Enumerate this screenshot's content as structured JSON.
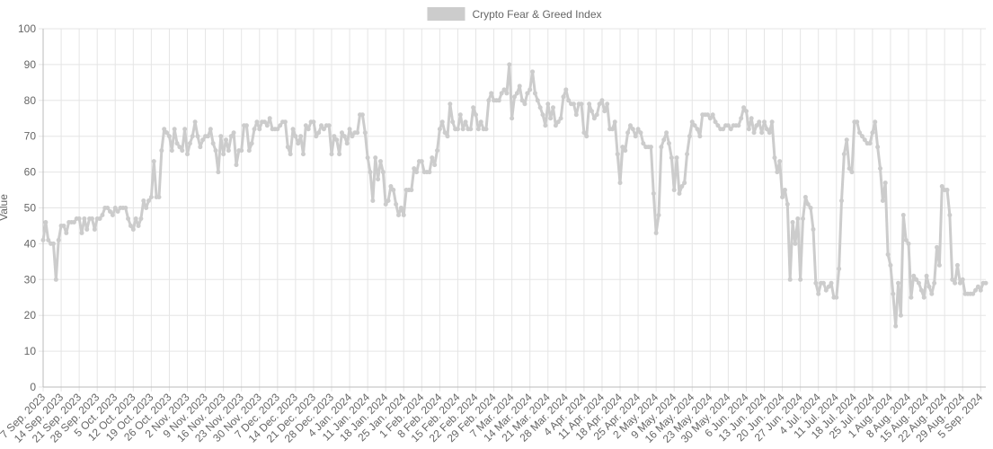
{
  "chart_data": {
    "type": "line",
    "y_label": "Value",
    "categories": [
      "7 Sep. 2023",
      null,
      null,
      null,
      null,
      null,
      null,
      "14 Sep. 2023",
      null,
      null,
      null,
      null,
      null,
      null,
      "21 Sep. 2023",
      null,
      null,
      null,
      null,
      null,
      null,
      "28 Sep. 2023",
      null,
      null,
      null,
      null,
      null,
      null,
      "5 Oct. 2023",
      null,
      null,
      null,
      null,
      null,
      null,
      "12 Oct. 2023",
      null,
      null,
      null,
      null,
      null,
      null,
      "19 Oct. 2023",
      null,
      null,
      null,
      null,
      null,
      null,
      "26 Oct. 2023",
      null,
      null,
      null,
      null,
      null,
      null,
      "2 Nov. 2023",
      null,
      null,
      null,
      null,
      null,
      null,
      "9 Nov. 2023",
      null,
      null,
      null,
      null,
      null,
      null,
      "16 Nov. 2023",
      null,
      null,
      null,
      null,
      null,
      null,
      "23 Nov. 2023",
      null,
      null,
      null,
      null,
      null,
      null,
      "30 Nov. 2023",
      null,
      null,
      null,
      null,
      null,
      null,
      "7 Dec. 2023",
      null,
      null,
      null,
      null,
      null,
      null,
      "14 Dec. 2023",
      null,
      null,
      null,
      null,
      null,
      null,
      "21 Dec. 2023",
      null,
      null,
      null,
      null,
      null,
      null,
      "28 Dec. 2023",
      null,
      null,
      null,
      null,
      null,
      null,
      "4 Jan. 2024",
      null,
      null,
      null,
      null,
      null,
      null,
      "11 Jan. 2024",
      null,
      null,
      null,
      null,
      null,
      null,
      "18 Jan. 2024",
      null,
      null,
      null,
      null,
      null,
      null,
      "25 Jan. 2024",
      null,
      null,
      null,
      null,
      null,
      null,
      "1 Feb. 2024",
      null,
      null,
      null,
      null,
      null,
      null,
      "8 Feb. 2024",
      null,
      null,
      null,
      null,
      null,
      null,
      "15 Feb. 2024",
      null,
      null,
      null,
      null,
      null,
      null,
      "22 Feb. 2024",
      null,
      null,
      null,
      null,
      null,
      null,
      "29 Feb. 2024",
      null,
      null,
      null,
      null,
      null,
      null,
      "7 Mar. 2024",
      null,
      null,
      null,
      null,
      null,
      null,
      "14 Mar. 2024",
      null,
      null,
      null,
      null,
      null,
      null,
      "21 Mar. 2024",
      null,
      null,
      null,
      null,
      null,
      null,
      "28 Mar. 2024",
      null,
      null,
      null,
      null,
      null,
      null,
      "4 Apr. 2024",
      null,
      null,
      null,
      null,
      null,
      null,
      "11 Apr. 2024",
      null,
      null,
      null,
      null,
      null,
      null,
      "18 Apr. 2024",
      null,
      null,
      null,
      null,
      null,
      null,
      "25 Apr. 2024",
      null,
      null,
      null,
      null,
      null,
      null,
      "2 May. 2024",
      null,
      null,
      null,
      null,
      null,
      null,
      "9 May. 2024",
      null,
      null,
      null,
      null,
      null,
      null,
      "16 May. 2024",
      null,
      null,
      null,
      null,
      null,
      null,
      "23 May. 2024",
      null,
      null,
      null,
      null,
      null,
      null,
      "30 May. 2024",
      null,
      null,
      null,
      null,
      null,
      null,
      "6 Jun. 2024",
      null,
      null,
      null,
      null,
      null,
      null,
      "13 Jun. 2024",
      null,
      null,
      null,
      null,
      null,
      null,
      "20 Jun. 2024",
      null,
      null,
      null,
      null,
      null,
      null,
      "27 Jun. 2024",
      null,
      null,
      null,
      null,
      null,
      null,
      "4 Jul. 2024",
      null,
      null,
      null,
      null,
      null,
      null,
      "11 Jul. 2024",
      null,
      null,
      null,
      null,
      null,
      null,
      "18 Jul. 2024",
      null,
      null,
      null,
      null,
      null,
      null,
      "25 Jul. 2024",
      null,
      null,
      null,
      null,
      null,
      null,
      "1 Aug. 2024",
      null,
      null,
      null,
      null,
      null,
      null,
      "8 Aug. 2024",
      null,
      null,
      null,
      null,
      null,
      null,
      "15 Aug. 2024",
      null,
      null,
      null,
      null,
      null,
      null,
      "22 Aug. 2024",
      null,
      null,
      null,
      null,
      null,
      null,
      "29 Aug. 2024",
      null,
      null,
      null,
      null,
      null,
      null,
      "5 Sep. 2024",
      null,
      null
    ],
    "series": [
      {
        "name": "Crypto Fear & Greed Index",
        "color": "#cccccc",
        "values": [
          41,
          46,
          41,
          40,
          40,
          30,
          41,
          45,
          45,
          43,
          46,
          46,
          46,
          47,
          47,
          43,
          47,
          44,
          47,
          47,
          44,
          47,
          47,
          48,
          50,
          50,
          49,
          48,
          50,
          49,
          50,
          50,
          50,
          47,
          45,
          44,
          47,
          45,
          47,
          52,
          50,
          52,
          53,
          63,
          53,
          53,
          66,
          72,
          71,
          70,
          66,
          72,
          68,
          67,
          66,
          72,
          65,
          68,
          70,
          74,
          70,
          67,
          69,
          70,
          70,
          72,
          68,
          66,
          60,
          70,
          65,
          69,
          66,
          70,
          71,
          62,
          66,
          66,
          73,
          73,
          66,
          68,
          72,
          74,
          72,
          74,
          74,
          73,
          75,
          72,
          72,
          72,
          73,
          74,
          74,
          67,
          65,
          72,
          70,
          68,
          70,
          65,
          73,
          72,
          74,
          74,
          70,
          71,
          73,
          72,
          73,
          73,
          65,
          70,
          69,
          65,
          71,
          70,
          68,
          72,
          70,
          71,
          71,
          76,
          76,
          71,
          64,
          60,
          52,
          64,
          58,
          63,
          60,
          51,
          52,
          56,
          55,
          51,
          48,
          50,
          48,
          55,
          55,
          55,
          61,
          60,
          63,
          63,
          60,
          60,
          60,
          64,
          62,
          66,
          72,
          74,
          71,
          70,
          79,
          74,
          72,
          72,
          76,
          72,
          74,
          72,
          72,
          78,
          76,
          72,
          74,
          72,
          72,
          80,
          82,
          80,
          80,
          80,
          82,
          83,
          82,
          90,
          75,
          81,
          82,
          84,
          80,
          79,
          82,
          83,
          88,
          82,
          80,
          78,
          76,
          73,
          79,
          75,
          78,
          73,
          74,
          75,
          81,
          83,
          80,
          79,
          79,
          76,
          79,
          79,
          71,
          70,
          79,
          77,
          75,
          76,
          79,
          80,
          77,
          79,
          72,
          72,
          74,
          65,
          57,
          67,
          66,
          71,
          73,
          72,
          70,
          72,
          71,
          68,
          67,
          67,
          67,
          54,
          43,
          48,
          67,
          69,
          71,
          68,
          64,
          55,
          64,
          54,
          56,
          57,
          65,
          70,
          74,
          73,
          72,
          70,
          76,
          76,
          76,
          75,
          76,
          74,
          73,
          72,
          72,
          73,
          73,
          72,
          73,
          73,
          73,
          75,
          78,
          77,
          72,
          75,
          71,
          73,
          74,
          71,
          74,
          72,
          71,
          74,
          64,
          60,
          63,
          53,
          55,
          51,
          30,
          46,
          40,
          47,
          30,
          47,
          53,
          51,
          50,
          44,
          29,
          26,
          29,
          29,
          27,
          28,
          29,
          25,
          25,
          33,
          52,
          65,
          69,
          61,
          60,
          74,
          74,
          71,
          70,
          69,
          68,
          68,
          71,
          74,
          67,
          61,
          52,
          57,
          37,
          34,
          26,
          17,
          29,
          20,
          48,
          41,
          40,
          25,
          31,
          30,
          29,
          27,
          25,
          31,
          28,
          26,
          29,
          39,
          34,
          56,
          55,
          55,
          48,
          30,
          29,
          34,
          29,
          30,
          26,
          26,
          26,
          26,
          27,
          28,
          27,
          29,
          29
        ]
      }
    ],
    "ylim": [
      0,
      100
    ],
    "yticks": [
      0,
      10,
      20,
      30,
      40,
      50,
      60,
      70,
      80,
      90,
      100
    ],
    "grid": true,
    "legend": "top"
  }
}
